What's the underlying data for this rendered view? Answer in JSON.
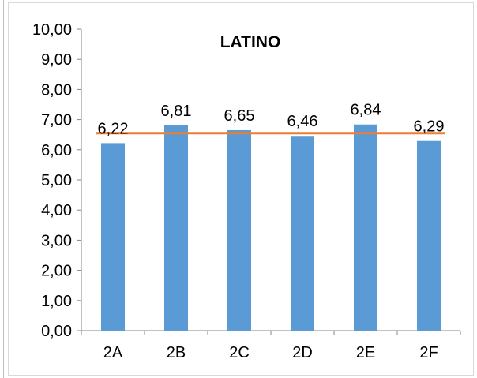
{
  "chart_data": {
    "type": "bar",
    "title": "LATINO",
    "categories": [
      "2A",
      "2B",
      "2C",
      "2D",
      "2E",
      "2F"
    ],
    "values": [
      6.22,
      6.81,
      6.65,
      6.46,
      6.84,
      6.29
    ],
    "value_labels": [
      "6,22",
      "6,81",
      "6,65",
      "6,46",
      "6,84",
      "6,29"
    ],
    "reference_line": 6.55,
    "y_ticks": [
      "0,00",
      "1,00",
      "2,00",
      "3,00",
      "4,00",
      "5,00",
      "6,00",
      "7,00",
      "8,00",
      "9,00",
      "10,00"
    ],
    "ylim": [
      0,
      10
    ],
    "grid": false,
    "bar_color": "#5b9bd5",
    "line_color": "#ed7d31",
    "xlabel": "",
    "ylabel": ""
  }
}
